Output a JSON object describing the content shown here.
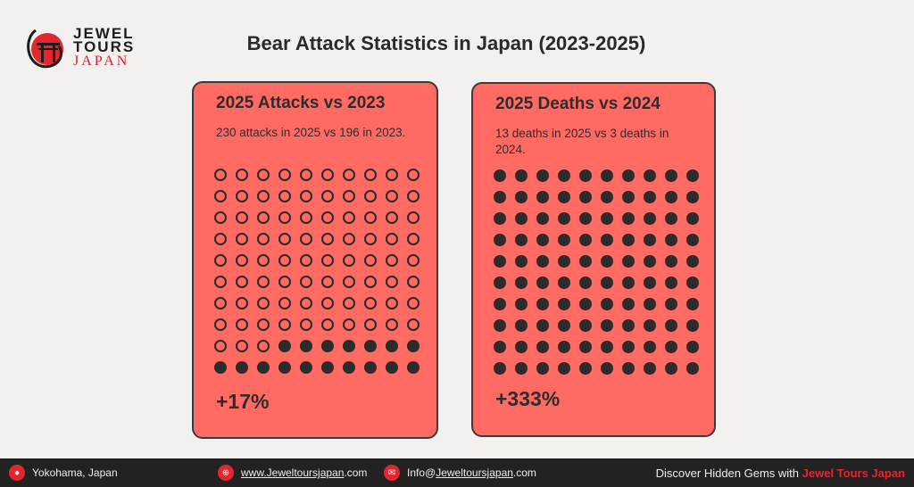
{
  "logo": {
    "line1": "JEWEL",
    "line2": "TOURS",
    "line3": "JAPAN"
  },
  "title": "Bear Attack Statistics in Japan (2023-2025)",
  "cards": [
    {
      "heading": "2025 Attacks vs 2023",
      "description": "230 attacks in 2025 vs 196 in 2023.",
      "change": "+17%",
      "filled_dots": 17,
      "total_dots": 100
    },
    {
      "heading": "2025 Deaths vs 2024",
      "description": "13 deaths in 2025 vs 3 deaths in 2024.",
      "change": "+333%",
      "filled_dots": 100,
      "total_dots": 100
    }
  ],
  "footer": {
    "location": "Yokohama, Japan",
    "website_link": "www.Jeweltoursjapan",
    "website_suffix": ".com",
    "email_prefix": "Info@",
    "email_link": "Jeweltoursjapan",
    "email_suffix": ".com",
    "tagline": "Discover Hidden Gems with ",
    "brand": "Jewel Tours Japan"
  },
  "colors": {
    "card": "#ff6a63",
    "accent": "#e8242e",
    "footer": "#222222"
  }
}
